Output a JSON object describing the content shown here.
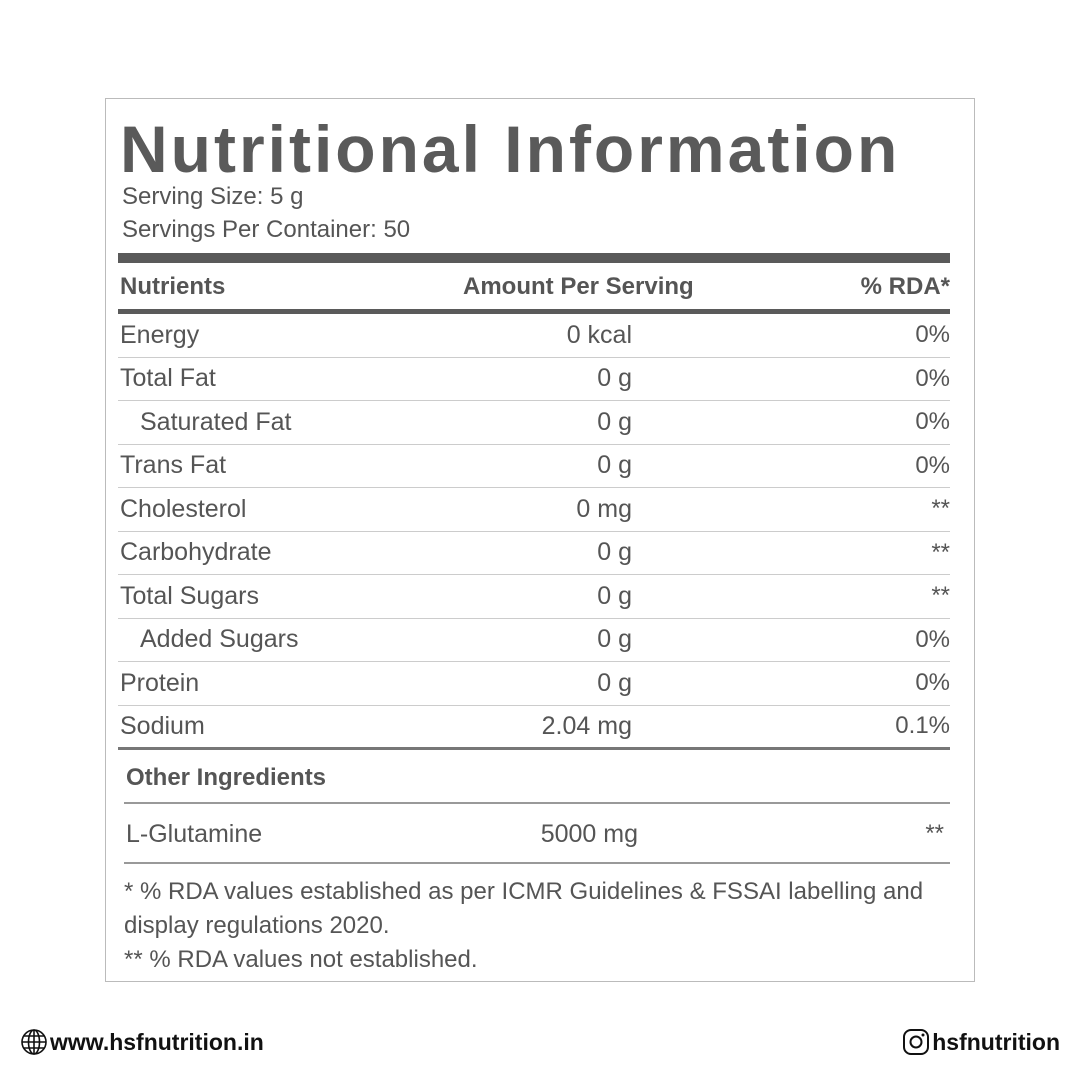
{
  "title": "Nutritional Information",
  "serving_size": "Serving Size: 5 g",
  "servings_per_container": "Servings Per Container: 50",
  "table": {
    "header": [
      "Nutrients",
      "Amount Per Serving",
      "% RDA*"
    ],
    "rows": [
      [
        "Energy",
        "0 kcal",
        "0%"
      ],
      [
        "Total Fat",
        "0 g",
        "0%"
      ],
      [
        "Saturated Fat",
        "0 g",
        "0%"
      ],
      [
        "Trans Fat",
        "0 g",
        "0%"
      ],
      [
        "Cholesterol",
        "0 mg",
        "**"
      ],
      [
        "Carbohydrate",
        "0 g",
        "**"
      ],
      [
        "Total Sugars",
        "0 g",
        "**"
      ],
      [
        "Added Sugars",
        "0 g",
        "0%"
      ],
      [
        "Protein",
        "0 g",
        "0%"
      ],
      [
        "Sodium",
        "2.04 mg",
        "0.1%"
      ]
    ]
  },
  "other_ingredients": {
    "heading": "Other Ingredients",
    "rows": [
      [
        "L-Glutamine",
        "5000 mg",
        "**"
      ]
    ]
  },
  "footnotes": [
    "* % RDA values established as per ICMR Guidelines & FSSAI labelling and display regulations 2020.",
    "** % RDA values not established."
  ],
  "footer": {
    "website": "www.hsfnutrition.in",
    "social": "hsfnutrition"
  }
}
